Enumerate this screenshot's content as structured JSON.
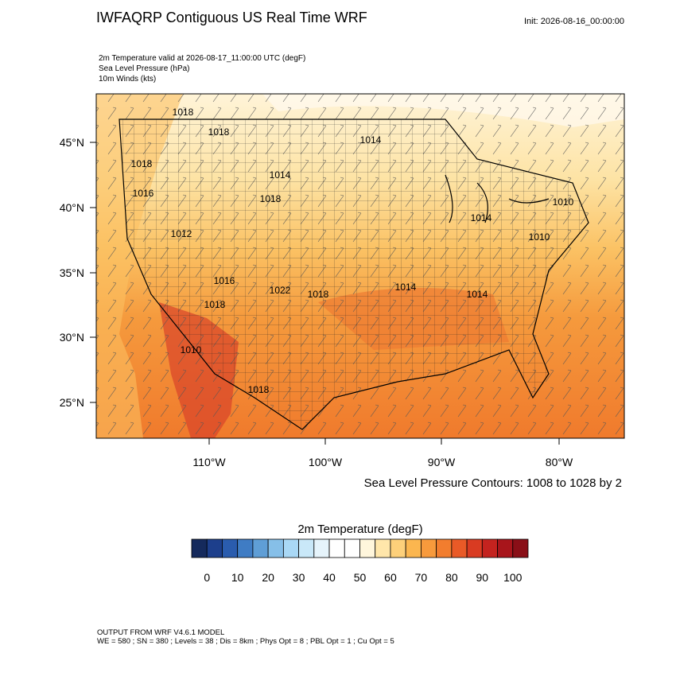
{
  "header": {
    "title": "IWFAQRP Contiguous US Real Time WRF",
    "init": "Init: 2026-08-16_00:00:00"
  },
  "fields": [
    "2m Temperature valid at 2026-08-17_11:00:00 UTC   (degF)",
    "Sea Level Pressure   (hPa)",
    "10m Winds   (kts)"
  ],
  "map": {
    "lat_labels": [
      "45°N",
      "40°N",
      "35°N",
      "30°N",
      "25°N"
    ],
    "lon_labels": [
      "110°W",
      "100°W",
      "90°W",
      "80°W"
    ],
    "contour_labels": [
      "1018",
      "1018",
      "1018",
      "1016",
      "1014",
      "1018",
      "1014",
      "1012",
      "1016",
      "1022",
      "1018",
      "1014",
      "1014",
      "1014",
      "1010",
      "1010",
      "1010",
      "1018",
      "1018"
    ],
    "contour_note": "Sea Level Pressure Contours: 1008 to 1028 by 2"
  },
  "colorbar": {
    "title": "2m Temperature  (degF)",
    "labels": [
      "0",
      "10",
      "20",
      "30",
      "40",
      "50",
      "60",
      "70",
      "80",
      "90",
      "100"
    ],
    "colors": [
      "#152a5c",
      "#1d3f8c",
      "#2a5cae",
      "#3f7cc4",
      "#5f9ed6",
      "#86bfe8",
      "#a9d8f5",
      "#c9e8f8",
      "#e6f4fb",
      "#ffffff",
      "#ffffff",
      "#fff6dc",
      "#ffe6aa",
      "#fdd07a",
      "#fbb64f",
      "#f79a3c",
      "#f27d2e",
      "#e95a27",
      "#d93b22",
      "#c4231f",
      "#a8151b",
      "#8a0f17"
    ]
  },
  "footer": [
    "OUTPUT FROM WRF V4.6.1 MODEL",
    "WE = 580 ; SN = 380 ; Levels = 38 ; Dis = 8km ; Phys Opt = 8 ; PBL Opt = 1 ; Cu Opt = 5"
  ]
}
